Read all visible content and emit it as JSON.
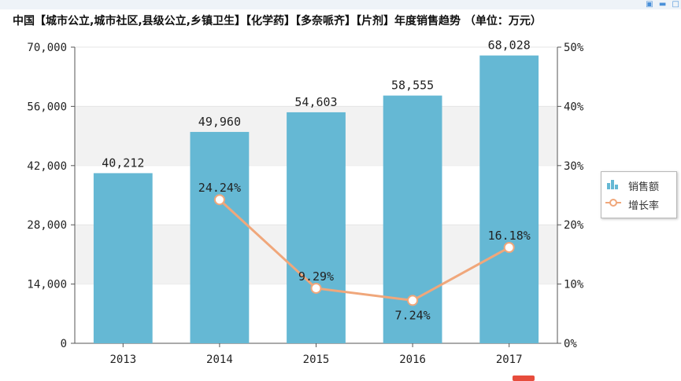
{
  "window": {
    "icons": "▣ ▬ □"
  },
  "title": "中国【城市公立,城市社区,县级公立,乡镇卫生】【化学药】【多奈哌齐】【片剂】年度销售趋势 （单位：万元）",
  "chart_data": {
    "type": "bar",
    "title": "中国【城市公立,城市社区,县级公立,乡镇卫生】【化学药】【多奈哌齐】【片剂】年度销售趋势 （单位：万元）",
    "categories": [
      "2013",
      "2014",
      "2015",
      "2016",
      "2017"
    ],
    "series": [
      {
        "name": "销售额",
        "type": "bar",
        "axis": "left",
        "color": "#65b8d4",
        "values": [
          40212,
          49960,
          54603,
          58555,
          68028
        ],
        "labels": [
          "40,212",
          "49,960",
          "54,603",
          "58,555",
          "68,028"
        ]
      },
      {
        "name": "增长率",
        "type": "line",
        "axis": "right",
        "color": "#f0a77b",
        "values": [
          null,
          24.24,
          9.29,
          7.24,
          16.18
        ],
        "labels": [
          "",
          "24.24%",
          "9.29%",
          "7.24%",
          "16.18%"
        ]
      }
    ],
    "y_left": {
      "min": 0,
      "max": 70000,
      "ticks": [
        0,
        14000,
        28000,
        42000,
        56000,
        70000
      ],
      "tick_labels": [
        "0",
        "14,000",
        "28,000",
        "42,000",
        "56,000",
        "70,000"
      ]
    },
    "y_right": {
      "min": 0,
      "max": 50,
      "ticks": [
        0,
        10,
        20,
        30,
        40,
        50
      ],
      "tick_labels": [
        "0%",
        "10%",
        "20%",
        "30%",
        "40%",
        "50%"
      ]
    },
    "legend": {
      "position": "right",
      "items": [
        "销售额",
        "增长率"
      ]
    },
    "grid": "alternating-bands"
  }
}
